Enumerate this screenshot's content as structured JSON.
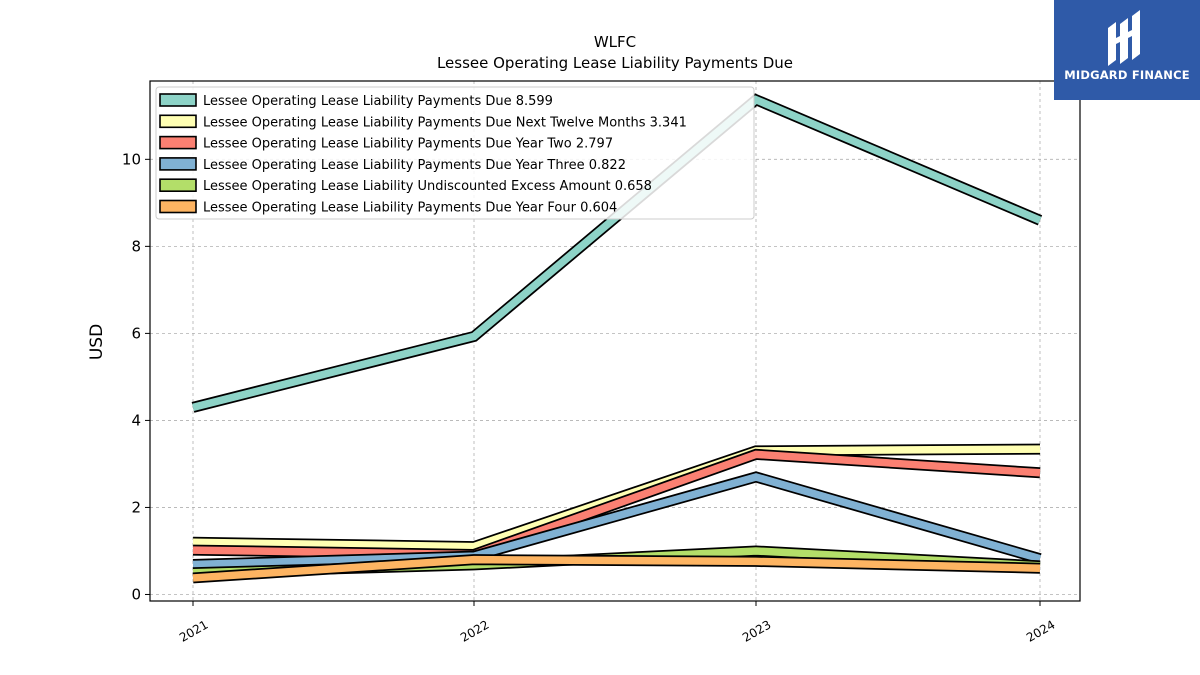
{
  "chart_data": {
    "type": "line",
    "title": "WLFC",
    "subtitle": "Lessee Operating Lease Liability Payments Due",
    "xlabel": "",
    "ylabel": "USD",
    "categories": [
      "2021",
      "2022",
      "2023",
      "2024"
    ],
    "ylim": [
      -0.15,
      11.8
    ],
    "yticks": [
      0,
      2,
      4,
      6,
      8,
      10
    ],
    "grid": true,
    "legend_position": "top-left",
    "series": [
      {
        "name": "Lessee Operating Lease Liability Payments Due  8.599",
        "values": [
          4.3,
          5.93,
          11.37,
          8.599
        ],
        "color": "#8dd3c7"
      },
      {
        "name": "Lessee Operating Lease Liability Payments Due Next Twelve Months  3.341",
        "values": [
          1.2,
          1.1,
          3.3,
          3.341
        ],
        "color": "#ffffb3"
      },
      {
        "name": "Lessee Operating Lease Liability Payments Due Year Two  2.797",
        "values": [
          1.02,
          0.92,
          3.22,
          2.797
        ],
        "color": "#fb8072"
      },
      {
        "name": "Lessee Operating Lease Liability Payments Due Year Three  0.822",
        "values": [
          0.69,
          0.88,
          2.7,
          0.822
        ],
        "color": "#80b1d3"
      },
      {
        "name": "Lessee Operating Lease Liability Undiscounted Excess Amount  0.658",
        "values": [
          0.5,
          0.68,
          1.0,
          0.658
        ],
        "color": "#b3de69"
      },
      {
        "name": "Lessee Operating Lease Liability Payments Due Year Four  0.604",
        "values": [
          0.38,
          0.8,
          0.76,
          0.604
        ],
        "color": "#fdb462"
      }
    ]
  },
  "logo": {
    "text": "MIDGARD FINANCE",
    "background": "#2f5aa8"
  }
}
